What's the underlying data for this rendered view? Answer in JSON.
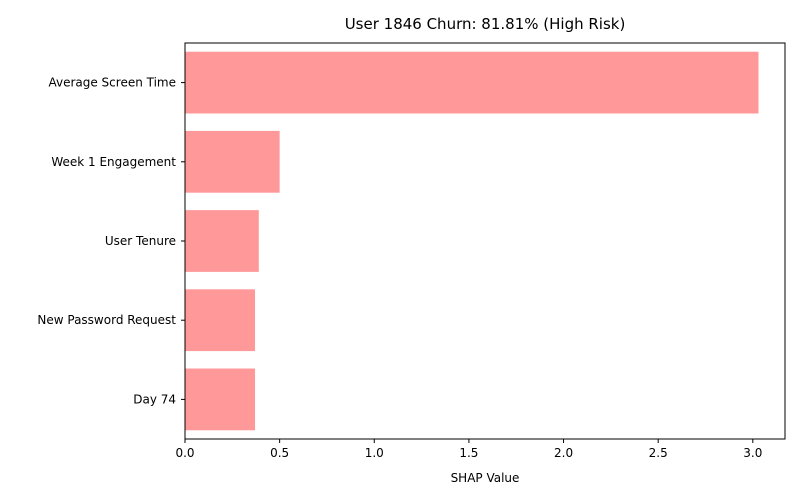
{
  "chart_data": {
    "type": "bar",
    "orientation": "horizontal",
    "title": "User 1846 Churn: 81.81% (High Risk)",
    "xlabel": "SHAP Value",
    "ylabel": "",
    "categories": [
      "Average Screen Time",
      "Week 1 Engagement",
      "User Tenure",
      "New Password Request",
      "Day 74"
    ],
    "values": [
      3.03,
      0.5,
      0.39,
      0.37,
      0.37
    ],
    "xlim": [
      0,
      3.17
    ],
    "xticks": [
      "0.0",
      "0.5",
      "1.0",
      "1.5",
      "2.0",
      "2.5",
      "3.0"
    ],
    "bar_color": "#ff9999",
    "grid": false,
    "legend": "none"
  }
}
